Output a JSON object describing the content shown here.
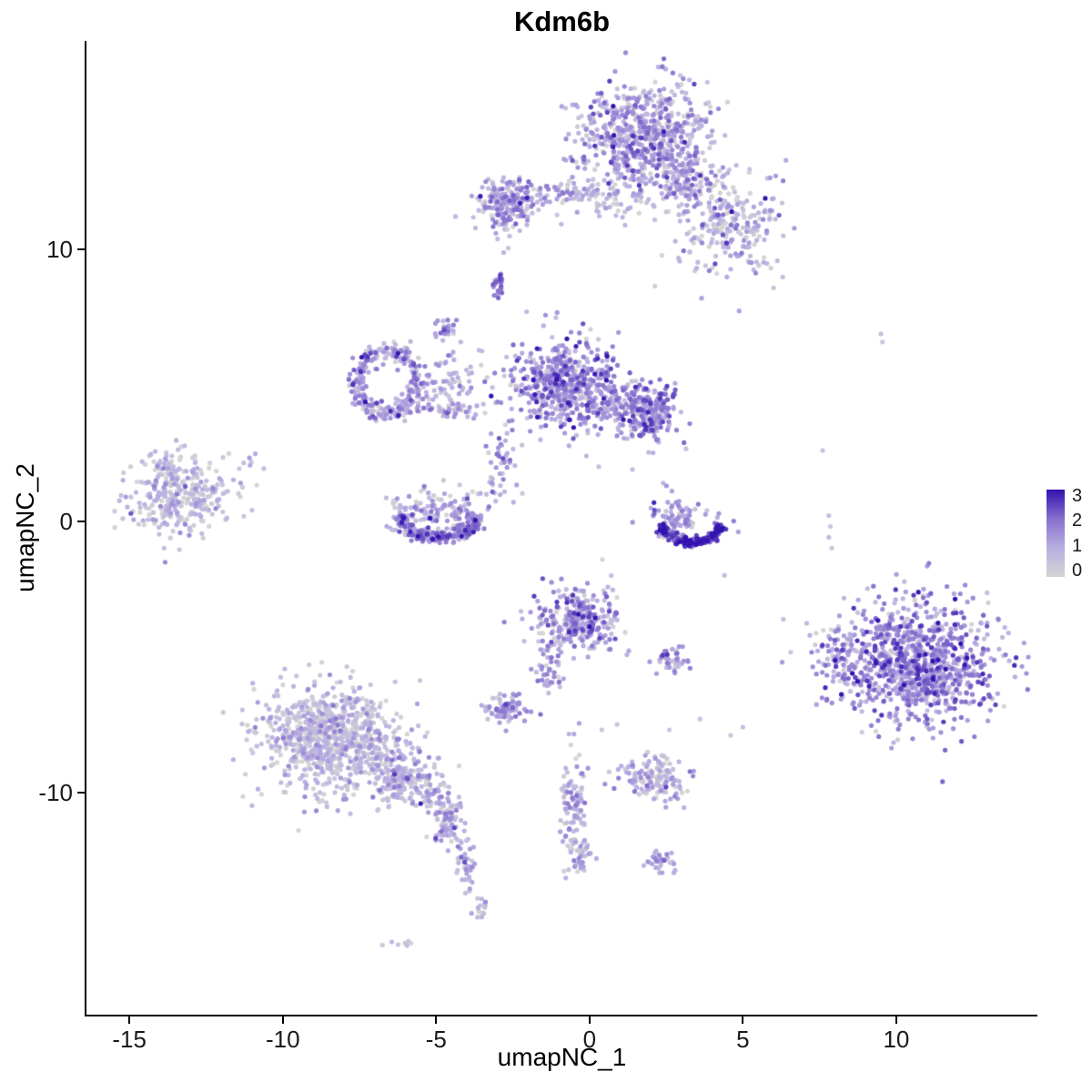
{
  "chart_data": {
    "type": "scatter",
    "title": "Kdm6b",
    "xlabel": "umapNC_1",
    "ylabel": "umapNC_2",
    "x_ticks": [
      -15,
      -10,
      -5,
      0,
      5,
      10
    ],
    "y_ticks": [
      -10,
      0,
      10
    ],
    "x_range": [
      -16.4,
      14.6
    ],
    "y_range": [
      -18.2,
      17.7
    ],
    "grid": false,
    "point_radius": 2.6,
    "legend": {
      "position": "right",
      "ticks": [
        3,
        2,
        1,
        0
      ],
      "min": 0,
      "max": 3
    },
    "colorscale": {
      "values": [
        0,
        1,
        2,
        3
      ],
      "stops": [
        "#d4d4d4",
        "#b9afe2",
        "#8670cd",
        "#3313b0"
      ]
    },
    "clusters": [
      {
        "name": "top-main",
        "shape": "gauss",
        "cx": 1.8,
        "cy": 14.2,
        "rx": 1.05,
        "ry": 0.95,
        "n": 650,
        "expr": 1.0,
        "sd": 0.75
      },
      {
        "name": "top-right-arm",
        "shape": "gauss",
        "cx": 4.6,
        "cy": 10.8,
        "rx": 0.75,
        "ry": 0.95,
        "n": 230,
        "expr": 0.8,
        "sd": 0.7,
        "rot": -35
      },
      {
        "name": "top-bridge",
        "shape": "gauss",
        "cx": 3.2,
        "cy": 12.4,
        "rx": 0.6,
        "ry": 0.5,
        "n": 120,
        "expr": 0.9,
        "sd": 0.7
      },
      {
        "name": "top-under-sparse",
        "shape": "gauss",
        "cx": 1.0,
        "cy": 11.9,
        "rx": 0.7,
        "ry": 0.5,
        "n": 60,
        "expr": 0.6,
        "sd": 0.5
      },
      {
        "name": "top-left-blob",
        "shape": "gauss",
        "cx": -2.6,
        "cy": 11.7,
        "rx": 0.55,
        "ry": 0.45,
        "n": 200,
        "expr": 1.0,
        "sd": 0.7
      },
      {
        "name": "top-left-strand",
        "shape": "gauss",
        "cx": -0.5,
        "cy": 12.1,
        "rx": 0.85,
        "ry": 0.18,
        "n": 70,
        "expr": 0.8,
        "sd": 0.6
      },
      {
        "name": "dense-dot",
        "shape": "gauss",
        "cx": -2.95,
        "cy": 8.8,
        "rx": 0.12,
        "ry": 0.22,
        "n": 25,
        "expr": 1.9,
        "sd": 0.5
      },
      {
        "name": "small-blob-upper",
        "shape": "gauss",
        "cx": -4.7,
        "cy": 7.1,
        "rx": 0.22,
        "ry": 0.18,
        "n": 22,
        "expr": 1.1,
        "sd": 0.6
      },
      {
        "name": "ring",
        "shape": "ring",
        "cx": -6.6,
        "cy": 5.1,
        "rx": 1.0,
        "ry": 1.15,
        "th": 0.15,
        "n": 270,
        "expr": 1.1,
        "sd": 0.7
      },
      {
        "name": "ring-spur",
        "shape": "gauss",
        "cx": -4.7,
        "cy": 5.2,
        "rx": 0.55,
        "ry": 0.6,
        "n": 70,
        "expr": 0.9,
        "sd": 0.6
      },
      {
        "name": "ring-tail",
        "shape": "gauss",
        "cx": -4.8,
        "cy": 4.2,
        "rx": 0.6,
        "ry": 0.22,
        "n": 50,
        "expr": 1.0,
        "sd": 0.6
      },
      {
        "name": "center-main",
        "shape": "gauss",
        "cx": -0.9,
        "cy": 5.0,
        "rx": 0.85,
        "ry": 0.8,
        "n": 520,
        "expr": 1.35,
        "sd": 0.7
      },
      {
        "name": "center-right-lobe",
        "shape": "gauss",
        "cx": 1.9,
        "cy": 4.0,
        "rx": 0.5,
        "ry": 0.55,
        "n": 260,
        "expr": 1.35,
        "sd": 0.7
      },
      {
        "name": "center-neck",
        "shape": "gauss",
        "cx": 0.6,
        "cy": 4.4,
        "rx": 0.35,
        "ry": 0.35,
        "n": 70,
        "expr": 1.2,
        "sd": 0.6
      },
      {
        "name": "crescent-left-top",
        "shape": "gauss",
        "cx": -4.9,
        "cy": 0.4,
        "rx": 0.85,
        "ry": 0.4,
        "n": 130,
        "expr": 0.8,
        "sd": 0.6
      },
      {
        "name": "crescent-left-bottom",
        "shape": "arc",
        "cx": -4.9,
        "cy": 0.5,
        "r": 1.3,
        "a0": 195,
        "a1": 345,
        "th": 0.11,
        "squash": 0.85,
        "n": 250,
        "expr": 1.5,
        "sd": 0.65
      },
      {
        "name": "crescent-right-top",
        "shape": "gauss",
        "cx": 3.0,
        "cy": 0.1,
        "rx": 0.45,
        "ry": 0.4,
        "n": 90,
        "expr": 1.3,
        "sd": 0.6
      },
      {
        "name": "crescent-right-dark",
        "shape": "arc",
        "cx": 3.3,
        "cy": 0.2,
        "r": 1.05,
        "a0": 200,
        "a1": 340,
        "th": 0.08,
        "squash": 0.95,
        "n": 170,
        "expr": 2.5,
        "sd": 0.45
      },
      {
        "name": "far-left",
        "shape": "gauss",
        "cx": -13.5,
        "cy": 1.0,
        "rx": 0.8,
        "ry": 0.75,
        "n": 320,
        "expr": 0.55,
        "sd": 0.5
      },
      {
        "name": "far-left-sparse",
        "shape": "gauss",
        "cx": -11.6,
        "cy": 1.2,
        "rx": 0.45,
        "ry": 0.6,
        "n": 18,
        "expr": 0.5,
        "sd": 0.4
      },
      {
        "name": "mid-lower",
        "shape": "gauss",
        "cx": -0.4,
        "cy": -3.6,
        "rx": 0.7,
        "ry": 0.6,
        "n": 300,
        "expr": 1.15,
        "sd": 0.7
      },
      {
        "name": "mid-lower-tail",
        "shape": "gauss",
        "cx": -1.3,
        "cy": -5.4,
        "rx": 0.25,
        "ry": 0.55,
        "n": 45,
        "expr": 1.0,
        "sd": 0.6
      },
      {
        "name": "small-right-of-mid",
        "shape": "gauss",
        "cx": 2.7,
        "cy": -5.2,
        "rx": 0.3,
        "ry": 0.22,
        "n": 40,
        "expr": 1.2,
        "sd": 0.6
      },
      {
        "name": "small-left-blob",
        "shape": "gauss",
        "cx": -2.7,
        "cy": -7.0,
        "rx": 0.4,
        "ry": 0.3,
        "n": 75,
        "expr": 0.95,
        "sd": 0.6
      },
      {
        "name": "bottomleft-main",
        "shape": "gauss",
        "cx": -8.4,
        "cy": -8.0,
        "rx": 1.15,
        "ry": 0.95,
        "n": 800,
        "expr": 0.55,
        "sd": 0.55
      },
      {
        "name": "bottomleft-arm",
        "shape": "gauss",
        "cx": -6.0,
        "cy": -9.6,
        "rx": 0.7,
        "ry": 0.5,
        "n": 220,
        "expr": 0.7,
        "sd": 0.6,
        "rot": -30
      },
      {
        "name": "bottomleft-tail1",
        "shape": "gauss",
        "cx": -4.6,
        "cy": -10.9,
        "rx": 0.3,
        "ry": 0.55,
        "n": 90,
        "expr": 1.0,
        "sd": 0.6,
        "rot": 15
      },
      {
        "name": "bottomleft-tail2",
        "shape": "gauss",
        "cx": -4.0,
        "cy": -12.7,
        "rx": 0.18,
        "ry": 0.5,
        "n": 35,
        "expr": 0.9,
        "sd": 0.5
      },
      {
        "name": "bottomleft-tail3",
        "shape": "gauss",
        "cx": -3.6,
        "cy": -14.2,
        "rx": 0.18,
        "ry": 0.25,
        "n": 16,
        "expr": 0.7,
        "sd": 0.5
      },
      {
        "name": "bottom-tiny-pair",
        "shape": "gauss",
        "cx": -6.1,
        "cy": -15.6,
        "rx": 0.25,
        "ry": 0.12,
        "n": 7,
        "expr": 0.3,
        "sd": 0.3
      },
      {
        "name": "bottom-strand",
        "shape": "gauss",
        "cx": -0.55,
        "cy": -10.4,
        "rx": 0.2,
        "ry": 1.0,
        "n": 90,
        "expr": 0.9,
        "sd": 0.6
      },
      {
        "name": "bottom-strand-foot",
        "shape": "gauss",
        "cx": -0.35,
        "cy": -12.3,
        "rx": 0.25,
        "ry": 0.3,
        "n": 35,
        "expr": 0.9,
        "sd": 0.6
      },
      {
        "name": "bottom-mid-cluster",
        "shape": "gauss",
        "cx": 2.1,
        "cy": -9.5,
        "rx": 0.55,
        "ry": 0.4,
        "n": 140,
        "expr": 0.75,
        "sd": 0.6
      },
      {
        "name": "bottom-small",
        "shape": "gauss",
        "cx": 2.3,
        "cy": -12.6,
        "rx": 0.25,
        "ry": 0.2,
        "n": 38,
        "expr": 0.95,
        "sd": 0.6
      },
      {
        "name": "right-big",
        "shape": "gauss",
        "cx": 10.7,
        "cy": -5.2,
        "rx": 1.3,
        "ry": 1.15,
        "n": 950,
        "expr": 1.4,
        "sd": 0.75
      },
      {
        "name": "right-big-west-edge",
        "shape": "gauss",
        "cx": 8.1,
        "cy": -5.0,
        "rx": 0.35,
        "ry": 0.8,
        "n": 60,
        "expr": 1.3,
        "sd": 0.7
      },
      {
        "name": "trail-to-center",
        "shape": "gauss",
        "cx": -2.9,
        "cy": 2.1,
        "rx": 0.3,
        "ry": 0.7,
        "n": 45,
        "expr": 0.9,
        "sd": 0.6
      }
    ],
    "outlier_points": [
      [
        9.5,
        6.9,
        0.5
      ],
      [
        9.55,
        6.6,
        0.4
      ],
      [
        7.6,
        2.6,
        0.5
      ],
      [
        7.8,
        0.2,
        0.6
      ],
      [
        7.85,
        -0.2,
        0.4
      ],
      [
        7.8,
        -0.6,
        0.7
      ],
      [
        7.9,
        -1.0,
        0.4
      ],
      [
        5.0,
        -7.6,
        0.6
      ],
      [
        4.6,
        -7.9,
        0.4
      ],
      [
        3.6,
        -7.3,
        0.5
      ],
      [
        0.9,
        -7.5,
        0.5
      ],
      [
        0.4,
        -7.7,
        0.4
      ],
      [
        4.4,
        -2.0,
        0.6
      ],
      [
        4.7,
        0.0,
        1.8
      ],
      [
        4.85,
        -0.4,
        1.2
      ],
      [
        2.4,
        1.4,
        0.8
      ],
      [
        1.4,
        1.9,
        0.6
      ],
      [
        -0.1,
        2.4,
        0.9
      ],
      [
        0.3,
        2.0,
        0.6
      ],
      [
        -1.6,
        3.0,
        0.8
      ],
      [
        -2.2,
        2.8,
        0.6
      ],
      [
        -2.8,
        9.9,
        0.9
      ],
      [
        -3.0,
        10.4,
        0.7
      ],
      [
        -4.2,
        6.6,
        0.8
      ],
      [
        -3.6,
        6.3,
        0.7
      ],
      [
        -1.5,
        7.2,
        1.0
      ],
      [
        -1.1,
        7.5,
        0.7
      ],
      [
        -3.3,
        12.6,
        0.8
      ],
      [
        2.6,
        -7.7,
        0.4
      ],
      [
        -11.0,
        0.4,
        0.5
      ],
      [
        6.3,
        9.0,
        0.6
      ],
      [
        6.0,
        8.6,
        0.5
      ]
    ]
  }
}
